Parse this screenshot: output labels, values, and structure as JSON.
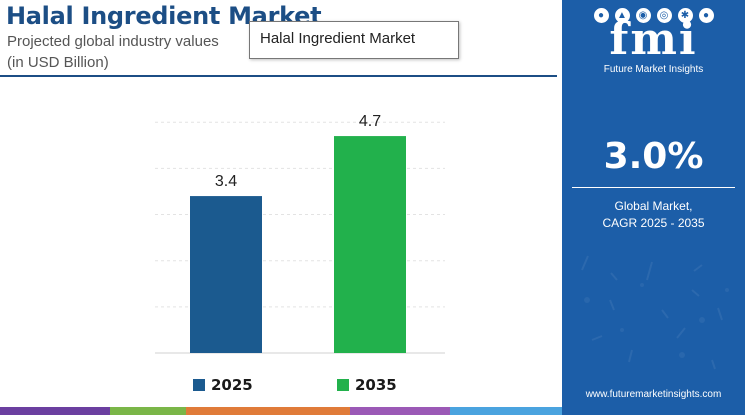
{
  "header": {
    "title": "Halal Ingredient Market",
    "subtitle": "Projected global industry values",
    "unit": "(in USD Billion)"
  },
  "tooltip": {
    "text": "Halal Ingredient Market"
  },
  "chart_data": {
    "type": "bar",
    "title": "Halal Ingredient Market",
    "subtitle": "Projected global industry values",
    "ylabel": "(in USD Billion)",
    "xlabel": "",
    "categories": [
      "2025",
      "2035"
    ],
    "values": [
      3.4,
      4.7
    ],
    "data_labels": [
      "3.4",
      "4.7"
    ],
    "colors": [
      "#1b5a8f",
      "#22b14c"
    ],
    "ylim": [
      0,
      5.2
    ],
    "grid": true,
    "legend": {
      "position": "bottom",
      "entries": [
        {
          "label": "2025",
          "color": "#1b5a8f"
        },
        {
          "label": "2035",
          "color": "#22b14c"
        }
      ]
    }
  },
  "side_panel": {
    "logo_text": "fmi",
    "logo_subtitle": "Future Market Insights",
    "cagr_value": "3.0%",
    "cagr_label_line1": "Global Market,",
    "cagr_label_line2": "CAGR 2025 - 2035",
    "website": "www.futuremarketinsights.com",
    "background_color": "#1c5ea8"
  },
  "bottom_strip_colors": [
    "#6b3fa0",
    "#7ab648",
    "#e07b39",
    "#9b59b6",
    "#4aa3df"
  ]
}
